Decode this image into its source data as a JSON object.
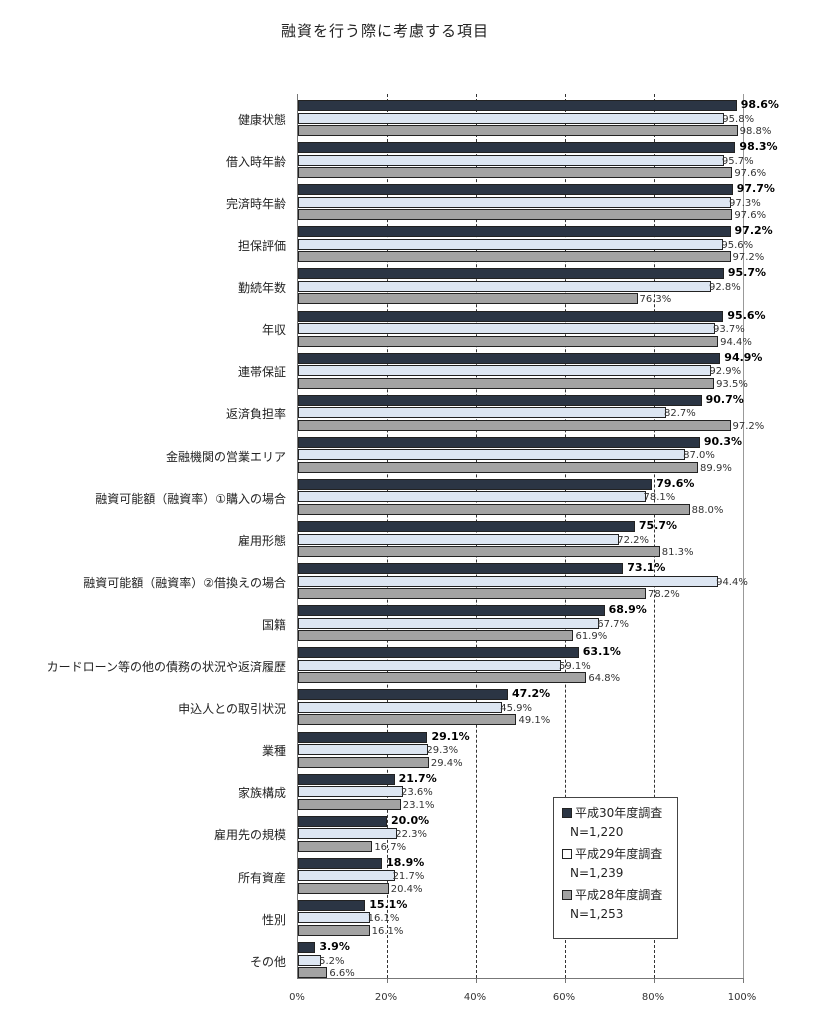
{
  "title": "融資を行う際に考慮する項目",
  "colors": {
    "series0": "#2b3544",
    "series1": "#dde6f2",
    "series2": "#a3a3a3"
  },
  "axis": {
    "ticks": [
      "0%",
      "20%",
      "40%",
      "60%",
      "80%",
      "100%"
    ]
  },
  "legend": [
    {
      "label": "平成30年度調査",
      "n": "N=1,220"
    },
    {
      "label": "平成29年度調査",
      "n": "N=1,239"
    },
    {
      "label": "平成28年度調査",
      "n": "N=1,253"
    }
  ],
  "chart_data": {
    "type": "bar",
    "orientation": "horizontal",
    "title": "融資を行う際に考慮する項目",
    "xlabel": "",
    "ylabel": "",
    "xlim": [
      0,
      100
    ],
    "x_ticks": [
      "0%",
      "20%",
      "40%",
      "60%",
      "80%",
      "100%"
    ],
    "grid": "vertical dashed at 20%, 40%, 60%, 80%; solid at 100%",
    "legend_position": "lower right inside plot",
    "categories": [
      "健康状態",
      "借入時年齢",
      "完済時年齢",
      "担保評価",
      "勤続年数",
      "年収",
      "連帯保証",
      "返済負担率",
      "金融機関の営業エリア",
      "融資可能額（融資率）①購入の場合",
      "雇用形態",
      "融資可能額（融資率）②借換えの場合",
      "国籍",
      "カードローン等の他の債務の状況や返済履歴",
      "申込人との取引状況",
      "業種",
      "家族構成",
      "雇用先の規模",
      "所有資産",
      "性別",
      "その他"
    ],
    "series": [
      {
        "name": "平成30年度調査 N=1,220",
        "values": [
          98.6,
          98.3,
          97.7,
          97.2,
          95.7,
          95.6,
          94.9,
          90.7,
          90.3,
          79.6,
          75.7,
          73.1,
          68.9,
          63.1,
          47.2,
          29.1,
          21.7,
          20.0,
          18.9,
          15.1,
          3.9
        ]
      },
      {
        "name": "平成29年度調査 N=1,239",
        "values": [
          95.8,
          95.7,
          97.3,
          95.6,
          92.8,
          93.7,
          92.9,
          82.7,
          87.0,
          78.1,
          72.2,
          94.4,
          67.7,
          59.1,
          45.9,
          29.3,
          23.6,
          22.3,
          21.7,
          16.1,
          5.2
        ]
      },
      {
        "name": "平成28年度調査 N=1,253",
        "values": [
          98.8,
          97.6,
          97.6,
          97.2,
          76.3,
          94.4,
          93.5,
          97.2,
          89.9,
          88.0,
          81.3,
          78.2,
          61.9,
          64.8,
          49.1,
          29.4,
          23.1,
          16.7,
          20.4,
          16.1,
          6.6
        ]
      }
    ],
    "value_labels": [
      [
        "98.6%",
        "95.8%",
        "98.8%"
      ],
      [
        "98.3%",
        "95.7%",
        "97.6%"
      ],
      [
        "97.7%",
        "97.3%",
        "97.6%"
      ],
      [
        "97.2%",
        "95.6%",
        "97.2%"
      ],
      [
        "95.7%",
        "92.8%",
        "76.3%"
      ],
      [
        "95.6%",
        "93.7%",
        "94.4%"
      ],
      [
        "94.9%",
        "92.9%",
        "93.5%"
      ],
      [
        "90.7%",
        "82.7%",
        "97.2%"
      ],
      [
        "90.3%",
        "87.0%",
        "89.9%"
      ],
      [
        "79.6%",
        "78.1%",
        "88.0%"
      ],
      [
        "75.7%",
        "72.2%",
        "81.3%"
      ],
      [
        "73.1%",
        "94.4%",
        "78.2%"
      ],
      [
        "68.9%",
        "67.7%",
        "61.9%"
      ],
      [
        "63.1%",
        "59.1%",
        "64.8%"
      ],
      [
        "47.2%",
        "45.9%",
        "49.1%"
      ],
      [
        "29.1%",
        "29.3%",
        "29.4%"
      ],
      [
        "21.7%",
        "23.6%",
        "23.1%"
      ],
      [
        "20.0%",
        "22.3%",
        "16.7%"
      ],
      [
        "18.9%",
        "21.7%",
        "20.4%"
      ],
      [
        "15.1%",
        "16.1%",
        "16.1%"
      ],
      [
        "3.9%",
        "5.2%",
        "6.6%"
      ]
    ]
  }
}
